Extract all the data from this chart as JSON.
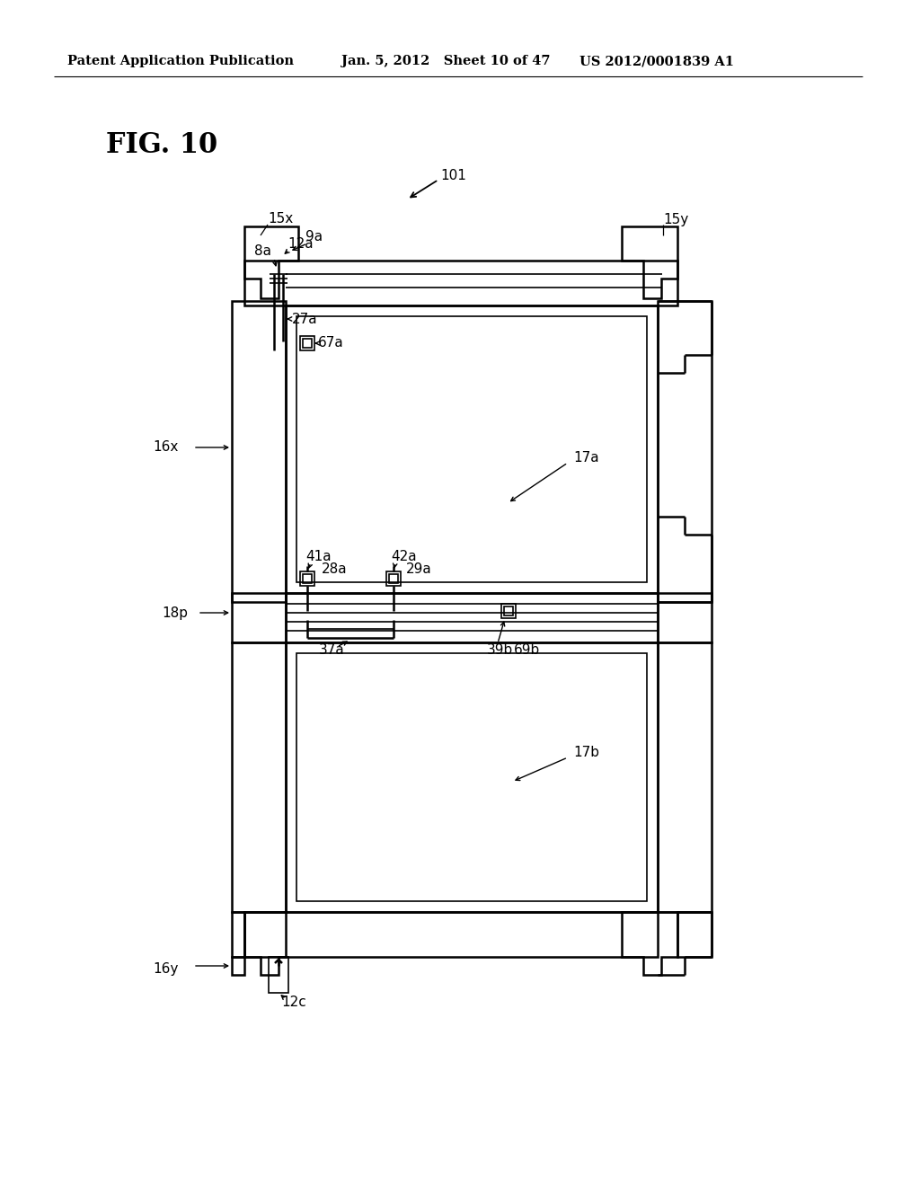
{
  "header_left": "Patent Application Publication",
  "header_center": "Jan. 5, 2012   Sheet 10 of 47",
  "header_right": "US 2012/0001839 A1",
  "fig_label": "FIG. 10",
  "bg_color": "#ffffff",
  "line_color": "#000000",
  "label_101": "101",
  "label_15x": "15x",
  "label_15y": "15y",
  "label_16x": "16x",
  "label_16y": "16y",
  "label_8a": "8a",
  "label_12a": "12a",
  "label_9a": "9a",
  "label_27a": "27a",
  "label_67a": "67a",
  "label_17a": "17a",
  "label_17b": "17b",
  "label_41a": "41a",
  "label_28a": "28a",
  "label_42a": "42a",
  "label_29a": "29a",
  "label_18p": "18p",
  "label_37a": "37a",
  "label_39b": "39b",
  "label_69b": "69b",
  "label_12c": "12c"
}
